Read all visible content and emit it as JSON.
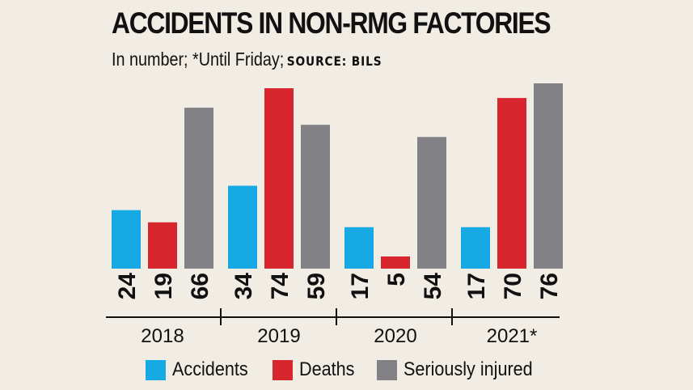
{
  "title": "ACCIDENTS IN NON-RMG FACTORIES",
  "subtitle": "In number; *Until Friday;",
  "source": "SOURCE: BILS",
  "colors": {
    "accidents": "#16a9e3",
    "deaths": "#d8262f",
    "injured": "#818186",
    "background": "#f1ede5"
  },
  "chart_data": {
    "type": "bar",
    "title": "ACCIDENTS IN NON-RMG FACTORIES",
    "subtitle": "In number; *Until Friday; SOURCE: BILS",
    "categories": [
      "2018",
      "2019",
      "2020",
      "2021*"
    ],
    "series": [
      {
        "name": "Accidents",
        "color": "#16a9e3",
        "values": [
          24,
          34,
          17,
          17
        ]
      },
      {
        "name": "Deaths",
        "color": "#d8262f",
        "values": [
          19,
          74,
          5,
          70
        ]
      },
      {
        "name": "Seriously injured",
        "color": "#818186",
        "values": [
          66,
          59,
          54,
          76
        ]
      }
    ],
    "xlabel": "",
    "ylabel": "",
    "ylim": [
      0,
      76
    ],
    "grid": false,
    "legend": "bottom"
  },
  "legend": [
    {
      "label": "Accidents",
      "color": "#16a9e3"
    },
    {
      "label": "Deaths",
      "color": "#d8262f"
    },
    {
      "label": "Seriously injured",
      "color": "#818186"
    }
  ]
}
